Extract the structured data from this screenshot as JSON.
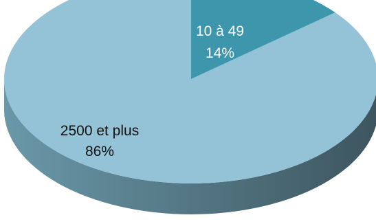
{
  "chart_data": {
    "type": "pie",
    "style": "3d",
    "slices": [
      {
        "category": "10 à 49",
        "value": 14,
        "percent_label": "14%",
        "color": "#3e96ad"
      },
      {
        "category": "2500 et plus",
        "value": 86,
        "percent_label": "86%",
        "color": "#94c2d6"
      }
    ],
    "side_color_light": "#6a98a9",
    "side_color_dark": "#3d555f",
    "label_color_on_dark": "#ffffff",
    "label_color_on_light": "#111111"
  }
}
